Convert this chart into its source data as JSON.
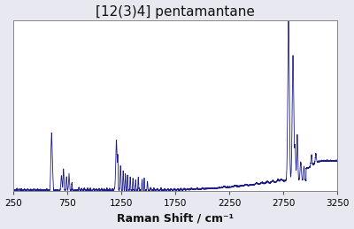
{
  "title": "[12(3)4] pentamantane",
  "xlabel": "Raman Shift / cm⁻¹",
  "xlim": [
    250,
    3250
  ],
  "ylim": [
    0,
    1.0
  ],
  "xticks": [
    250,
    750,
    1250,
    1750,
    2250,
    2750,
    3250
  ],
  "line_color": "#1c1c8c",
  "background_color": "#ffffff",
  "plot_bg_color": "#ffffff",
  "outer_bg_color": "#e8e8f0",
  "title_fontsize": 11,
  "xlabel_fontsize": 9
}
